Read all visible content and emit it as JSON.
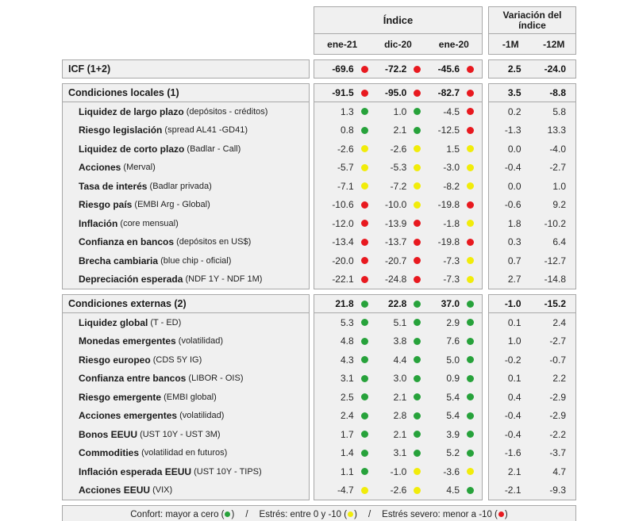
{
  "colors": {
    "green": "#27a23b",
    "yellow": "#f1ec0a",
    "red": "#e8191f",
    "cell_bg": "#f0f0f0",
    "border": "#a8a8a8"
  },
  "header": {
    "indice_title": "Índice",
    "variacion_title": "Variación del índice",
    "index_cols": [
      "ene-21",
      "dic-20",
      "ene-20"
    ],
    "var_cols": [
      "-1M",
      "-12M"
    ]
  },
  "bands": [
    {
      "kind": "total",
      "label": "ICF (1+2)",
      "sub": "",
      "index": [
        [
          "-69.6",
          "red"
        ],
        [
          "-72.2",
          "red"
        ],
        [
          "-45.6",
          "red"
        ]
      ],
      "var": [
        "2.5",
        "-24.0"
      ]
    },
    {
      "kind": "section",
      "label": "Condiciones locales (1)",
      "sub": "",
      "index": [
        [
          "-91.5",
          "red"
        ],
        [
          "-95.0",
          "red"
        ],
        [
          "-82.7",
          "red"
        ]
      ],
      "var": [
        "3.5",
        "-8.8"
      ],
      "rows": [
        {
          "label": "Liquidez de largo plazo",
          "sub": "(depósitos - créditos)",
          "index": [
            [
              "1.3",
              "green"
            ],
            [
              "1.0",
              "green"
            ],
            [
              "-4.5",
              "red"
            ]
          ],
          "var": [
            "0.2",
            "5.8"
          ]
        },
        {
          "label": "Riesgo legislación",
          "sub": "(spread AL41 -GD41)",
          "index": [
            [
              "0.8",
              "green"
            ],
            [
              "2.1",
              "green"
            ],
            [
              "-12.5",
              "red"
            ]
          ],
          "var": [
            "-1.3",
            "13.3"
          ]
        },
        {
          "label": "Liquidez de corto plazo",
          "sub": "(Badlar - Call)",
          "index": [
            [
              "-2.6",
              "yellow"
            ],
            [
              "-2.6",
              "yellow"
            ],
            [
              "1.5",
              "yellow"
            ]
          ],
          "var": [
            "0.0",
            "-4.0"
          ]
        },
        {
          "label": "Acciones",
          "sub": "(Merval)",
          "index": [
            [
              "-5.7",
              "yellow"
            ],
            [
              "-5.3",
              "yellow"
            ],
            [
              "-3.0",
              "yellow"
            ]
          ],
          "var": [
            "-0.4",
            "-2.7"
          ]
        },
        {
          "label": "Tasa de interés",
          "sub": "(Badlar privada)",
          "index": [
            [
              "-7.1",
              "yellow"
            ],
            [
              "-7.2",
              "yellow"
            ],
            [
              "-8.2",
              "yellow"
            ]
          ],
          "var": [
            "0.0",
            "1.0"
          ]
        },
        {
          "label": "Riesgo país",
          "sub": "(EMBI Arg - Global)",
          "index": [
            [
              "-10.6",
              "red"
            ],
            [
              "-10.0",
              "yellow"
            ],
            [
              "-19.8",
              "red"
            ]
          ],
          "var": [
            "-0.6",
            "9.2"
          ]
        },
        {
          "label": "Inflación",
          "sub": "(core mensual)",
          "index": [
            [
              "-12.0",
              "red"
            ],
            [
              "-13.9",
              "red"
            ],
            [
              "-1.8",
              "yellow"
            ]
          ],
          "var": [
            "1.8",
            "-10.2"
          ]
        },
        {
          "label": "Confianza en bancos",
          "sub": "(depósitos en US$)",
          "index": [
            [
              "-13.4",
              "red"
            ],
            [
              "-13.7",
              "red"
            ],
            [
              "-19.8",
              "red"
            ]
          ],
          "var": [
            "0.3",
            "6.4"
          ]
        },
        {
          "label": "Brecha cambiaria",
          "sub": "(blue chip - oficial)",
          "index": [
            [
              "-20.0",
              "red"
            ],
            [
              "-20.7",
              "red"
            ],
            [
              "-7.3",
              "yellow"
            ]
          ],
          "var": [
            "0.7",
            "-12.7"
          ]
        },
        {
          "label": "Depreciación esperada",
          "sub": "(NDF 1Y - NDF 1M)",
          "index": [
            [
              "-22.1",
              "red"
            ],
            [
              "-24.8",
              "red"
            ],
            [
              "-7.3",
              "yellow"
            ]
          ],
          "var": [
            "2.7",
            "-14.8"
          ]
        }
      ]
    },
    {
      "kind": "section",
      "label": "Condiciones externas (2)",
      "sub": "",
      "index": [
        [
          "21.8",
          "green"
        ],
        [
          "22.8",
          "green"
        ],
        [
          "37.0",
          "green"
        ]
      ],
      "var": [
        "-1.0",
        "-15.2"
      ],
      "rows": [
        {
          "label": "Liquidez global",
          "sub": "(T - ED)",
          "index": [
            [
              "5.3",
              "green"
            ],
            [
              "5.1",
              "green"
            ],
            [
              "2.9",
              "green"
            ]
          ],
          "var": [
            "0.1",
            "2.4"
          ]
        },
        {
          "label": "Monedas emergentes",
          "sub": "(volatilidad)",
          "index": [
            [
              "4.8",
              "green"
            ],
            [
              "3.8",
              "green"
            ],
            [
              "7.6",
              "green"
            ]
          ],
          "var": [
            "1.0",
            "-2.7"
          ]
        },
        {
          "label": "Riesgo europeo",
          "sub": "(CDS 5Y IG)",
          "index": [
            [
              "4.3",
              "green"
            ],
            [
              "4.4",
              "green"
            ],
            [
              "5.0",
              "green"
            ]
          ],
          "var": [
            "-0.2",
            "-0.7"
          ]
        },
        {
          "label": "Confianza entre bancos",
          "sub": "(LIBOR - OIS)",
          "index": [
            [
              "3.1",
              "green"
            ],
            [
              "3.0",
              "green"
            ],
            [
              "0.9",
              "green"
            ]
          ],
          "var": [
            "0.1",
            "2.2"
          ]
        },
        {
          "label": "Riesgo emergente",
          "sub": "(EMBI global)",
          "index": [
            [
              "2.5",
              "green"
            ],
            [
              "2.1",
              "green"
            ],
            [
              "5.4",
              "green"
            ]
          ],
          "var": [
            "0.4",
            "-2.9"
          ]
        },
        {
          "label": "Acciones emergentes",
          "sub": "(volatilidad)",
          "index": [
            [
              "2.4",
              "green"
            ],
            [
              "2.8",
              "green"
            ],
            [
              "5.4",
              "green"
            ]
          ],
          "var": [
            "-0.4",
            "-2.9"
          ]
        },
        {
          "label": "Bonos EEUU",
          "sub": "(UST 10Y - UST 3M)",
          "index": [
            [
              "1.7",
              "green"
            ],
            [
              "2.1",
              "green"
            ],
            [
              "3.9",
              "green"
            ]
          ],
          "var": [
            "-0.4",
            "-2.2"
          ]
        },
        {
          "label": "Commodities",
          "sub": "(volatilidad en futuros)",
          "index": [
            [
              "1.4",
              "green"
            ],
            [
              "3.1",
              "green"
            ],
            [
              "5.2",
              "green"
            ]
          ],
          "var": [
            "-1.6",
            "-3.7"
          ]
        },
        {
          "label": "Inflación esperada EEUU",
          "sub": "(UST 10Y - TIPS)",
          "index": [
            [
              "1.1",
              "green"
            ],
            [
              "-1.0",
              "yellow"
            ],
            [
              "-3.6",
              "yellow"
            ]
          ],
          "var": [
            "2.1",
            "4.7"
          ]
        },
        {
          "label": "Acciones EEUU",
          "sub": "(VIX)",
          "index": [
            [
              "-4.7",
              "yellow"
            ],
            [
              "-2.6",
              "yellow"
            ],
            [
              "4.5",
              "green"
            ]
          ],
          "var": [
            "-2.1",
            "-9.3"
          ]
        }
      ]
    }
  ],
  "legend": {
    "separator": "/",
    "parts": [
      {
        "text": "Confort: mayor a cero",
        "dot": "green"
      },
      {
        "text": "Estrés: entre 0 y -10",
        "dot": "yellow"
      },
      {
        "text": "Estrés severo: menor a -10",
        "dot": "red"
      }
    ]
  }
}
